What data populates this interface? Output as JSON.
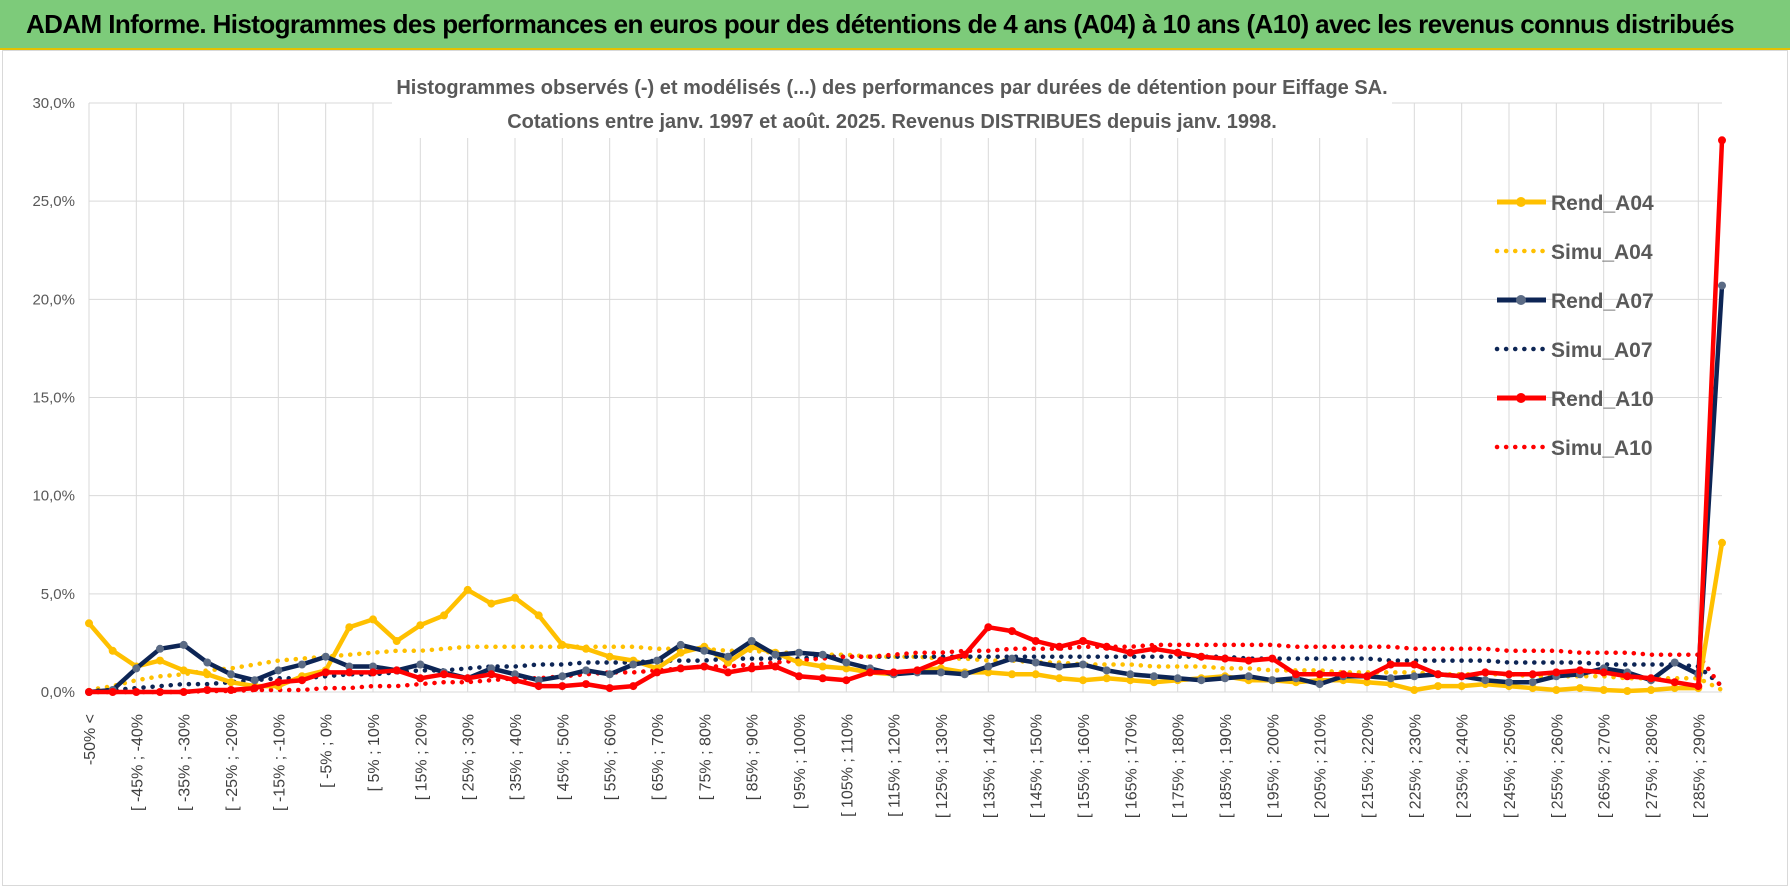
{
  "banner": {
    "title": "ADAM Informe. Histogrammes des performances en euros pour des détentions de 4 ans (A04) à 10 ans (A10) avec les revenus connus distribués"
  },
  "colors": {
    "banner_bg": "#7dcb7a",
    "banner_line": "#e5c000",
    "a04": "#ffc000",
    "a07": "#0d2555",
    "a10": "#ff0000",
    "grid": "#d9d9d9"
  },
  "chart_data": {
    "type": "line",
    "title": "Histogrammes observés (-) et modélisés (...) des performances par durées de détention pour Eiffage SA.",
    "subtitle": "Cotations entre janv. 1997 et août. 2025. Revenus DISTRIBUES depuis janv. 1998.",
    "ylim": [
      0,
      30
    ],
    "yticks": [
      "0,0%",
      "5,0%",
      "10,0%",
      "15,0%",
      "20,0%",
      "25,0%",
      "30,0%"
    ],
    "grid": true,
    "legend_position": "right",
    "category_count": 70,
    "categories": [
      "-50% <",
      "[ -50% ; -45%",
      "[ -45% ; -40%",
      "[ -40% ; -35%",
      "[ -35% ; -30%",
      "[ -30% ; -25%",
      "[ -25% ; -20%",
      "[ -20% ; -15%",
      "[ -15% ; -10%",
      "[ -10% ; -5%",
      "[ -5% ; 0%",
      "[ 0% ; 5%",
      "[ 5% ; 10%",
      "[ 10% ; 15%",
      "[ 15% ; 20%",
      "[ 20% ; 25%",
      "[ 25% ; 30%",
      "[ 30% ; 35%",
      "[ 35% ; 40%",
      "[ 40% ; 45%",
      "[ 45% ; 50%",
      "[ 50% ; 55%",
      "[ 55% ; 60%",
      "[ 60% ; 65%",
      "[ 65% ; 70%",
      "[ 70% ; 75%",
      "[ 75% ; 80%",
      "[ 80% ; 85%",
      "[ 85% ; 90%",
      "[ 90% ; 95%",
      "[ 95% ; 100%",
      "[ 100% ; 105%",
      "[ 105% ; 110%",
      "[ 110% ; 115%",
      "[ 115% ; 120%",
      "[ 120% ; 125%",
      "[ 125% ; 130%",
      "[ 130% ; 135%",
      "[ 135% ; 140%",
      "[ 140% ; 145%",
      "[ 145% ; 150%",
      "[ 150% ; 155%",
      "[ 155% ; 160%",
      "[ 160% ; 165%",
      "[ 165% ; 170%",
      "[ 170% ; 175%",
      "[ 175% ; 180%",
      "[ 180% ; 185%",
      "[ 185% ; 190%",
      "[ 190% ; 195%",
      "[ 195% ; 200%",
      "[ 200% ; 205%",
      "[ 205% ; 210%",
      "[ 210% ; 215%",
      "[ 215% ; 220%",
      "[ 220% ; 225%",
      "[ 225% ; 230%",
      "[ 230% ; 235%",
      "[ 235% ; 240%",
      "[ 240% ; 245%",
      "[ 245% ; 250%",
      "[ 250% ; 255%",
      "[ 255% ; 260%",
      "[ 260% ; 265%",
      "[ 265% ; 270%",
      "[ 270% ; 275%",
      "[ 275% ; 280%",
      "[ 280% ; 285%",
      "[ 285% ; 290%",
      "[ 290% ; 295%"
    ],
    "visible_tick_labels": [
      {
        "i": 0,
        "label": "-50% <"
      },
      {
        "i": 2,
        "label": "[ -45% ; -40%"
      },
      {
        "i": 4,
        "label": "[ -35% ; -30%"
      },
      {
        "i": 6,
        "label": "[ -25% ; -20%"
      },
      {
        "i": 8,
        "label": "[ -15% ; -10%"
      },
      {
        "i": 10,
        "label": "[ -5% ; 0%"
      },
      {
        "i": 12,
        "label": "[ 5% ; 10%"
      },
      {
        "i": 14,
        "label": "[ 15% ; 20%"
      },
      {
        "i": 16,
        "label": "[ 25% ; 30%"
      },
      {
        "i": 18,
        "label": "[ 35% ; 40%"
      },
      {
        "i": 20,
        "label": "[ 45% ; 50%"
      },
      {
        "i": 22,
        "label": "[ 55% ; 60%"
      },
      {
        "i": 24,
        "label": "[ 65% ; 70%"
      },
      {
        "i": 26,
        "label": "[ 75% ; 80%"
      },
      {
        "i": 28,
        "label": "[ 85% ; 90%"
      },
      {
        "i": 30,
        "label": "[ 95% ; 100%"
      },
      {
        "i": 32,
        "label": "[ 105% ; 110%"
      },
      {
        "i": 34,
        "label": "[ 115% ; 120%"
      },
      {
        "i": 36,
        "label": "[ 125% ; 130%"
      },
      {
        "i": 38,
        "label": "[ 135% ; 140%"
      },
      {
        "i": 40,
        "label": "[ 145% ; 150%"
      },
      {
        "i": 42,
        "label": "[ 155% ; 160%"
      },
      {
        "i": 44,
        "label": "[ 165% ; 170%"
      },
      {
        "i": 46,
        "label": "[ 175% ; 180%"
      },
      {
        "i": 48,
        "label": "[ 185% ; 190%"
      },
      {
        "i": 50,
        "label": "[ 195% ; 200%"
      },
      {
        "i": 52,
        "label": "[ 205% ; 210%"
      },
      {
        "i": 54,
        "label": "[ 215% ; 220%"
      },
      {
        "i": 56,
        "label": "[ 225% ; 230%"
      },
      {
        "i": 58,
        "label": "[ 235% ; 240%"
      },
      {
        "i": 60,
        "label": "[ 245% ; 250%"
      },
      {
        "i": 62,
        "label": "[ 255% ; 260%"
      },
      {
        "i": 64,
        "label": "[ 265% ; 270%"
      },
      {
        "i": 66,
        "label": "[ 275% ; 280%"
      },
      {
        "i": 68,
        "label": "[ 285% ; 290%"
      }
    ],
    "series": [
      {
        "name": "Rend_A04",
        "style": "solid",
        "color": "#ffc000",
        "values": [
          3.5,
          2.1,
          1.3,
          1.6,
          1.1,
          0.9,
          0.5,
          0.3,
          0.3,
          0.8,
          1.1,
          3.3,
          3.7,
          2.6,
          3.4,
          3.9,
          5.2,
          4.5,
          4.8,
          3.9,
          2.4,
          2.2,
          1.8,
          1.6,
          1.2,
          2.0,
          2.3,
          1.5,
          2.3,
          2.0,
          1.5,
          1.3,
          1.2,
          1.0,
          0.9,
          1.1,
          1.2,
          1.0,
          1.0,
          0.9,
          0.9,
          0.7,
          0.6,
          0.7,
          0.6,
          0.5,
          0.6,
          0.7,
          0.8,
          0.6,
          0.6,
          0.5,
          0.6,
          0.6,
          0.5,
          0.4,
          0.1,
          0.3,
          0.3,
          0.4,
          0.3,
          0.2,
          0.1,
          0.2,
          0.1,
          0.05,
          0.1,
          0.2,
          0.2,
          7.6
        ]
      },
      {
        "name": "Simu_A04",
        "style": "dotted",
        "color": "#ffc000",
        "values": [
          0.1,
          0.3,
          0.6,
          0.8,
          0.9,
          1.1,
          1.2,
          1.4,
          1.6,
          1.7,
          1.8,
          1.9,
          2.0,
          2.1,
          2.1,
          2.2,
          2.3,
          2.3,
          2.3,
          2.3,
          2.3,
          2.3,
          2.3,
          2.3,
          2.2,
          2.2,
          2.2,
          2.1,
          2.1,
          2.0,
          2.0,
          1.9,
          1.9,
          1.8,
          1.8,
          1.8,
          1.7,
          1.7,
          1.6,
          1.6,
          1.5,
          1.5,
          1.4,
          1.4,
          1.4,
          1.3,
          1.3,
          1.3,
          1.2,
          1.2,
          1.1,
          1.1,
          1.1,
          1.0,
          1.0,
          1.0,
          1.0,
          0.9,
          0.9,
          0.9,
          0.9,
          0.8,
          0.8,
          0.8,
          0.8,
          0.7,
          0.7,
          0.7,
          0.7,
          0.1
        ]
      },
      {
        "name": "Rend_A07",
        "style": "solid",
        "color": "#0d2555",
        "values": [
          0.0,
          0.1,
          1.2,
          2.2,
          2.4,
          1.5,
          0.9,
          0.6,
          1.1,
          1.4,
          1.8,
          1.3,
          1.3,
          1.1,
          1.4,
          1.0,
          0.7,
          1.2,
          0.9,
          0.6,
          0.8,
          1.1,
          0.9,
          1.4,
          1.6,
          2.4,
          2.1,
          1.8,
          2.6,
          1.9,
          2.0,
          1.9,
          1.5,
          1.2,
          0.9,
          1.0,
          1.0,
          0.9,
          1.3,
          1.7,
          1.5,
          1.3,
          1.4,
          1.1,
          0.9,
          0.8,
          0.7,
          0.6,
          0.7,
          0.8,
          0.6,
          0.7,
          0.4,
          0.8,
          0.8,
          0.7,
          0.8,
          0.9,
          0.8,
          0.6,
          0.5,
          0.5,
          0.8,
          0.9,
          1.2,
          1.0,
          0.6,
          1.5,
          0.9,
          20.7
        ]
      },
      {
        "name": "Simu_A07",
        "style": "dotted",
        "color": "#0d2555",
        "values": [
          0.05,
          0.1,
          0.2,
          0.3,
          0.4,
          0.4,
          0.5,
          0.6,
          0.7,
          0.7,
          0.8,
          0.9,
          0.9,
          1.0,
          1.1,
          1.1,
          1.2,
          1.3,
          1.3,
          1.4,
          1.4,
          1.5,
          1.5,
          1.5,
          1.6,
          1.6,
          1.6,
          1.7,
          1.7,
          1.7,
          1.7,
          1.8,
          1.8,
          1.8,
          1.8,
          1.8,
          1.8,
          1.8,
          1.8,
          1.8,
          1.8,
          1.8,
          1.8,
          1.8,
          1.8,
          1.8,
          1.8,
          1.8,
          1.8,
          1.7,
          1.7,
          1.7,
          1.7,
          1.7,
          1.7,
          1.6,
          1.6,
          1.6,
          1.6,
          1.6,
          1.5,
          1.5,
          1.5,
          1.5,
          1.4,
          1.4,
          1.4,
          1.4,
          1.3,
          0.3
        ]
      },
      {
        "name": "Rend_A10",
        "style": "solid",
        "color": "#ff0000",
        "values": [
          0.0,
          0.0,
          0.0,
          0.0,
          0.0,
          0.1,
          0.1,
          0.2,
          0.5,
          0.6,
          1.0,
          1.0,
          1.0,
          1.1,
          0.7,
          0.9,
          0.7,
          0.9,
          0.6,
          0.3,
          0.3,
          0.4,
          0.2,
          0.3,
          1.0,
          1.2,
          1.3,
          1.0,
          1.2,
          1.3,
          0.8,
          0.7,
          0.6,
          1.0,
          1.0,
          1.1,
          1.6,
          1.9,
          3.3,
          3.1,
          2.6,
          2.3,
          2.6,
          2.3,
          2.0,
          2.2,
          2.0,
          1.8,
          1.7,
          1.6,
          1.7,
          0.9,
          0.9,
          0.9,
          0.8,
          1.4,
          1.4,
          0.9,
          0.8,
          1.0,
          0.9,
          0.9,
          1.0,
          1.1,
          1.0,
          0.8,
          0.7,
          0.5,
          0.3,
          28.1
        ]
      },
      {
        "name": "Simu_A10",
        "style": "dotted",
        "color": "#ff0000",
        "values": [
          0.0,
          0.0,
          0.0,
          0.0,
          0.0,
          0.05,
          0.05,
          0.1,
          0.1,
          0.1,
          0.2,
          0.2,
          0.3,
          0.3,
          0.4,
          0.5,
          0.5,
          0.6,
          0.7,
          0.7,
          0.8,
          0.9,
          1.0,
          1.0,
          1.1,
          1.2,
          1.3,
          1.3,
          1.4,
          1.5,
          1.6,
          1.7,
          1.8,
          1.8,
          1.9,
          2.0,
          2.0,
          2.1,
          2.1,
          2.2,
          2.2,
          2.2,
          2.3,
          2.3,
          2.3,
          2.4,
          2.4,
          2.4,
          2.4,
          2.4,
          2.4,
          2.3,
          2.3,
          2.3,
          2.3,
          2.3,
          2.2,
          2.2,
          2.2,
          2.2,
          2.1,
          2.1,
          2.1,
          2.0,
          2.0,
          2.0,
          1.9,
          1.9,
          1.9,
          0.2
        ]
      }
    ]
  }
}
